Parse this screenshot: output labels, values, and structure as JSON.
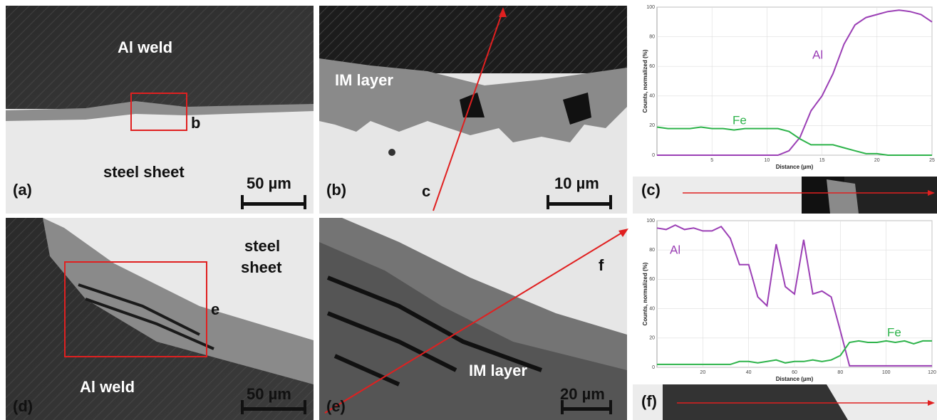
{
  "panels": {
    "a": {
      "label": "(a)",
      "top_text": "Al weld",
      "bottom_text": "steel sheet",
      "box_label": "b",
      "scale": "50 µm"
    },
    "b": {
      "label": "(b)",
      "layer_text": "IM layer",
      "arrow_label": "c",
      "scale": "10 µm"
    },
    "c": {
      "label": "(c)"
    },
    "d": {
      "label": "(d)",
      "top_text": "steel sheet",
      "bottom_text": "Al weld",
      "box_label": "e",
      "scale": "50 µm"
    },
    "e": {
      "label": "(e)",
      "layer_text": "IM layer",
      "arrow_label": "f",
      "scale": "20 µm"
    },
    "f": {
      "label": "(f)"
    }
  },
  "chart_data": [
    {
      "type": "line",
      "x_label": "Distance (µm)",
      "y_label": "Counts, normalized (%)",
      "x": [
        0,
        1,
        2,
        3,
        4,
        5,
        6,
        7,
        8,
        9,
        10,
        11,
        12,
        13,
        14,
        15,
        16,
        17,
        18,
        19,
        20,
        21,
        22,
        23,
        24,
        25
      ],
      "series": [
        {
          "name": "Al",
          "color": "#9b3fb5",
          "values": [
            0,
            0,
            0,
            0,
            0,
            0,
            0,
            0,
            0,
            0,
            0,
            0,
            3,
            12,
            30,
            40,
            55,
            75,
            88,
            93,
            95,
            97,
            98,
            97,
            95,
            90
          ]
        },
        {
          "name": "Fe",
          "color": "#2db34a",
          "values": [
            19,
            18,
            18,
            18,
            19,
            18,
            18,
            17,
            18,
            18,
            18,
            18,
            16,
            11,
            7,
            7,
            7,
            5,
            3,
            1,
            1,
            0,
            0,
            0,
            0,
            0
          ]
        }
      ],
      "xlim": [
        0,
        25
      ],
      "ylim": [
        0,
        100
      ],
      "xticks": [
        5,
        10,
        15,
        20,
        25
      ],
      "yticks": [
        0,
        20,
        40,
        60,
        80,
        100
      ],
      "grid": true
    },
    {
      "type": "line",
      "x_label": "Distance (µm)",
      "y_label": "Counts, normalized (%)",
      "x": [
        0,
        4,
        8,
        12,
        16,
        20,
        24,
        28,
        32,
        36,
        40,
        44,
        48,
        52,
        56,
        60,
        64,
        68,
        72,
        76,
        80,
        84,
        88,
        92,
        96,
        100,
        104,
        108,
        112,
        116,
        120
      ],
      "series": [
        {
          "name": "Al",
          "color": "#9b3fb5",
          "values": [
            95,
            94,
            97,
            94,
            95,
            93,
            93,
            96,
            88,
            70,
            70,
            48,
            42,
            84,
            55,
            50,
            87,
            50,
            52,
            48,
            25,
            1,
            1,
            1,
            1,
            1,
            1,
            1,
            1,
            1,
            1
          ]
        },
        {
          "name": "Fe",
          "color": "#2db34a",
          "values": [
            2,
            2,
            2,
            2,
            2,
            2,
            2,
            2,
            2,
            4,
            4,
            3,
            4,
            5,
            3,
            4,
            4,
            5,
            4,
            5,
            8,
            17,
            18,
            17,
            17,
            18,
            17,
            18,
            16,
            18,
            18
          ]
        }
      ],
      "xlim": [
        0,
        120
      ],
      "ylim": [
        0,
        100
      ],
      "xticks": [
        20,
        40,
        60,
        80,
        100,
        120
      ],
      "yticks": [
        0,
        20,
        40,
        60,
        80,
        100
      ],
      "grid": true
    }
  ]
}
